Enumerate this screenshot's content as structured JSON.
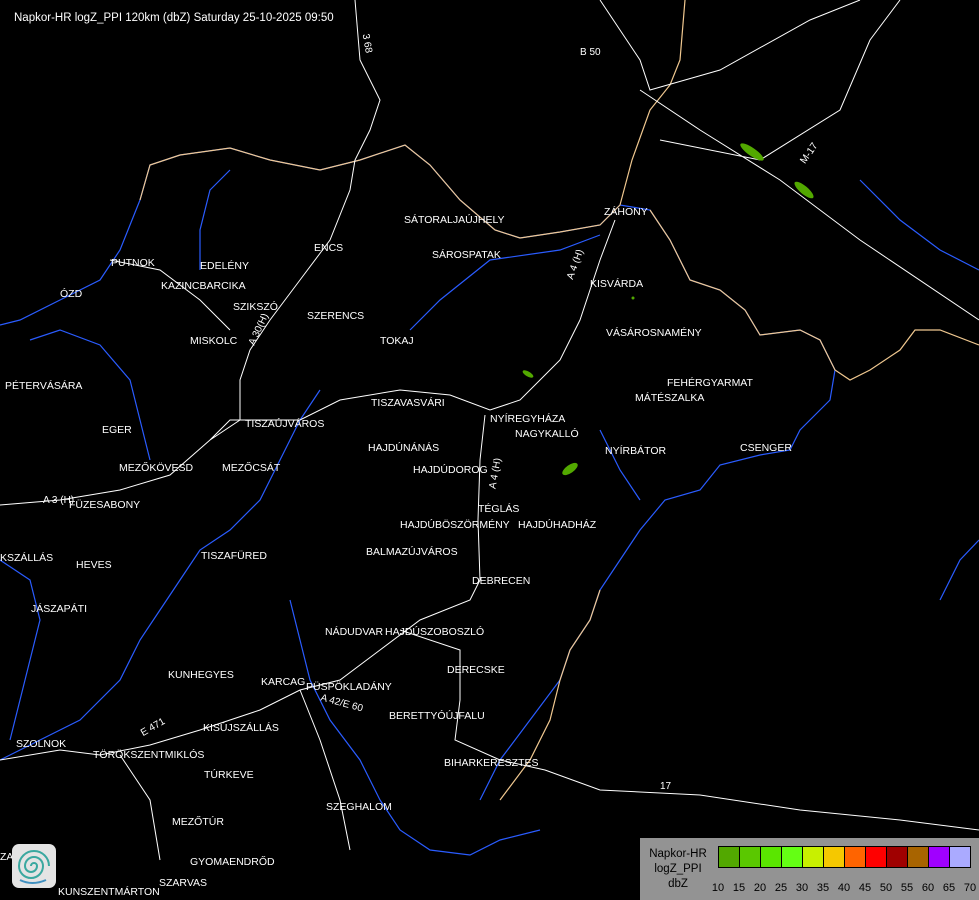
{
  "title": "Napkor-HR logZ_PPI 120km (dbZ) Saturday 25-10-2025 09:50",
  "legend": {
    "label_lines": [
      "Napkor-HR",
      "logZ_PPI",
      "dbZ"
    ],
    "ticks": [
      "10",
      "15",
      "20",
      "25",
      "30",
      "35",
      "40",
      "45",
      "50",
      "55",
      "60",
      "65",
      "70"
    ],
    "colors": [
      "#52a800",
      "#5ac800",
      "#5ae600",
      "#64ff14",
      "#c8f000",
      "#f5c800",
      "#ff6400",
      "#ff0000",
      "#a00000",
      "#a86400",
      "#a000ff",
      "#aaaaff"
    ]
  },
  "colors": {
    "border": "#f0c890",
    "river": "#2050ff",
    "road": "#ffffff",
    "echo": "#52a800"
  },
  "logo_icon": "spiral-logo-icon",
  "cities": [
    "SÁTORALJAÚJHELY",
    "SÁROSPATAK",
    "ZÁHONY",
    "KISVÁRDA",
    "PUTNOK",
    "EDELÉNY",
    "ENCS",
    "KAZINCBARCIKA",
    "ÓZD",
    "SZIKSZÓ",
    "SZERENCS",
    "MISKOLC",
    "TOKAJ",
    "VÁSÁROSNAMÉNY",
    "PÉTERVÁSÁRA",
    "FEHÉRGYARMAT",
    "MÁTÉSZALKA",
    "TISZAVASVÁRI",
    "NYÍREGYHÁZA",
    "EGER",
    "TISZAÚJVÁROS",
    "NAGYKALLÓ",
    "HAJDÚNÁNÁS",
    "NYÍRBÁTOR",
    "CSENGER",
    "MEZŐKÖVESD",
    "MEZŐCSÁT",
    "HAJDÚDOROG",
    "FÜZESABONY",
    "TÉGLÁS",
    "HAJDÚBÖSZÖRMÉNY",
    "HAJDÚHADHÁZ",
    "BALMAZÚJVÁROS",
    "TISZAFÜRED",
    "KSZÁLLÁS",
    "HEVES",
    "DEBRECEN",
    "JÁSZAPÁTI",
    "NÁDUDVAR",
    "HAJDÚSZOBOSZLÓ",
    "DERECSKE",
    "KUNHEGYES",
    "KARCAG",
    "PÜSPÖKLADÁNY",
    "BERETTYÓÚJFALU",
    "KISÚJSZÁLLÁS",
    "SZOLNOK",
    "TÖRÖKSZENTMIKLÓS",
    "BIHARKERESZTES",
    "TÚRKEVE",
    "SZEGHALOM",
    "MEZŐTÚR",
    "GYOMAENDRŐD",
    "SZARVAS",
    "KUNSZENTMÁRTON",
    "ZA"
  ],
  "roads": [
    "3 68",
    "B 50",
    "M-17",
    "A 4 (H)",
    "A 3 (H)",
    "A 30(H)",
    "A 4 (H)",
    "A 42/E 60",
    "E 471",
    "17"
  ]
}
